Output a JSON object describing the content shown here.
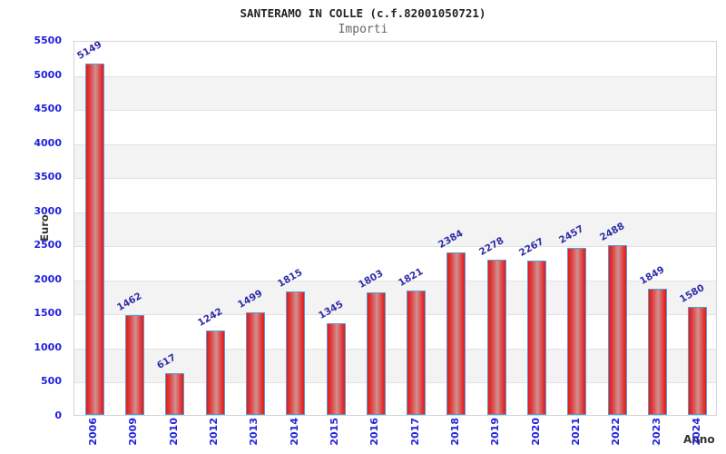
{
  "chart_data": {
    "type": "bar",
    "title": "SANTERAMO IN COLLE (c.f.82001050721)",
    "subtitle": "Importi",
    "xlabel": "Anno",
    "ylabel": "Euro",
    "categories": [
      "2006",
      "2009",
      "2010",
      "2012",
      "2013",
      "2014",
      "2015",
      "2016",
      "2017",
      "2018",
      "2019",
      "2020",
      "2021",
      "2022",
      "2023",
      "2024"
    ],
    "values": [
      5149,
      1462,
      617,
      1242,
      1499,
      1815,
      1345,
      1803,
      1821,
      2384,
      2278,
      2267,
      2457,
      2488,
      1849,
      1580
    ],
    "ylim": [
      0,
      5500
    ],
    "ytick_step": 500,
    "grid": true,
    "legend": "none",
    "band_pattern": "alternating horizontal stripes every 500 units, gray below even thousands",
    "colors": {
      "bar_edge": "#5b9bd5",
      "bar_red": "#e01b1b",
      "bar_red_mid": "#e04040",
      "bar_center_light": "#cf9191",
      "tick_label": "#2222dd",
      "value_label": "#2e2eaa",
      "band_gray": "#f3f3f3",
      "gridline": "#e2e2e2",
      "plot_border": "#d4d4d4",
      "title": "#222222",
      "subtitle": "#666666",
      "axis_title": "#333333"
    }
  }
}
